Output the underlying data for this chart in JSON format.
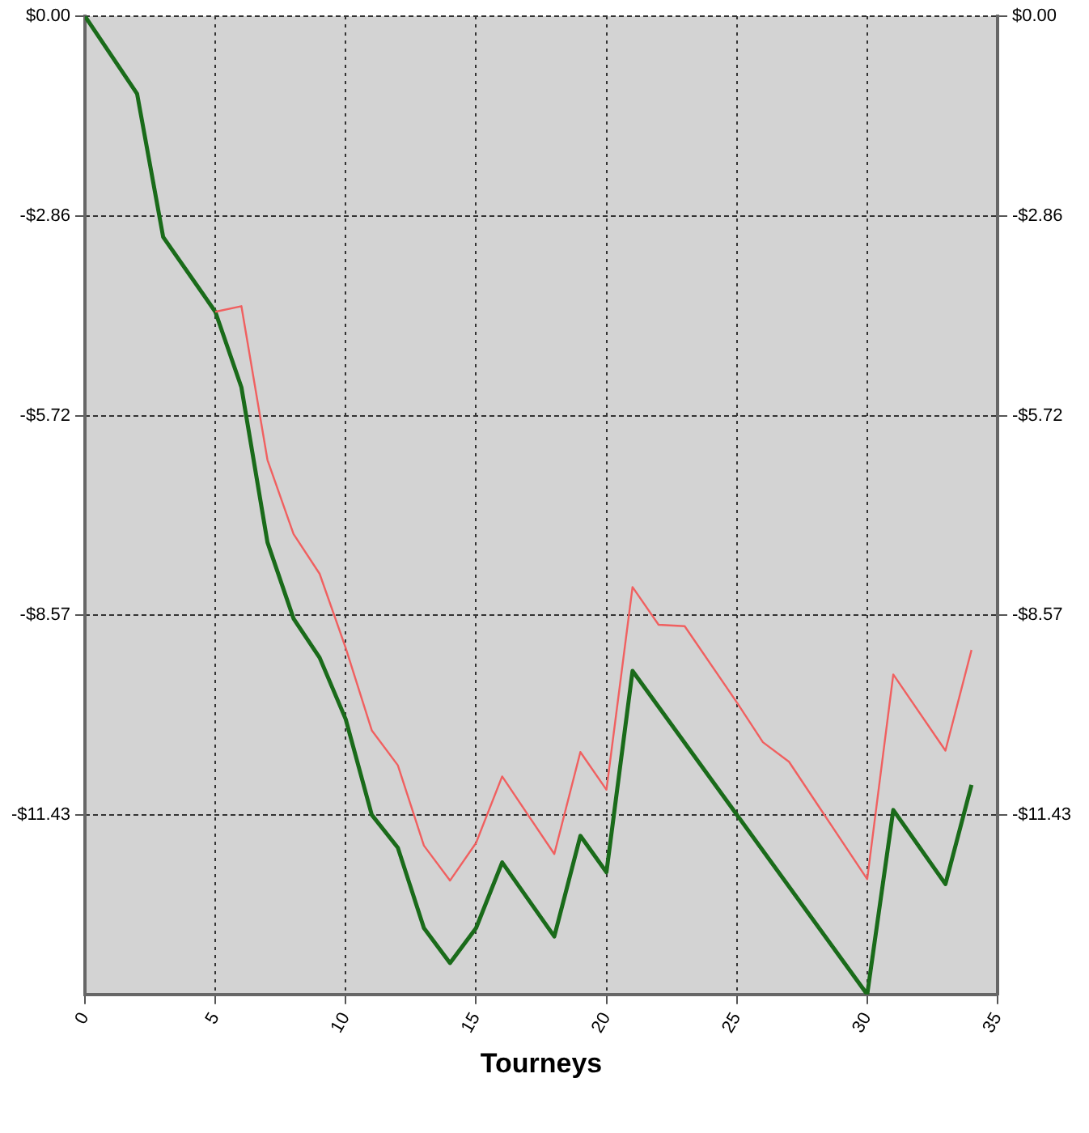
{
  "chart_data": {
    "type": "line",
    "xlabel": "Tourneys",
    "xlim": [
      0,
      35
    ],
    "xticks": [
      0,
      5,
      10,
      15,
      20,
      25,
      30,
      35
    ],
    "ylim": [
      -14,
      0
    ],
    "yticks": [
      {
        "value": 0,
        "label": "$0.00"
      },
      {
        "value": -2.86,
        "label": "-$2.86"
      },
      {
        "value": -5.72,
        "label": "-$5.72"
      },
      {
        "value": -8.57,
        "label": "-$8.57"
      },
      {
        "value": -11.43,
        "label": "-$11.43"
      }
    ],
    "y2lim": [
      -14,
      0
    ],
    "y2ticks": [
      {
        "value": 0,
        "label": "$0.00"
      },
      {
        "value": -2.86,
        "label": "-$2.86"
      },
      {
        "value": -5.72,
        "label": "-$5.72"
      },
      {
        "value": -8.57,
        "label": "-$8.57"
      },
      {
        "value": -11.43,
        "label": "-$11.43"
      }
    ],
    "grid": true,
    "legend": false,
    "marker": "none",
    "line_style": "solid",
    "series": [
      {
        "color": "#f06060",
        "x": [
          5,
          6,
          7,
          8,
          9,
          10,
          11,
          12,
          13,
          14,
          15,
          16,
          18,
          19,
          20,
          21,
          22,
          23,
          25,
          26,
          27,
          30,
          31,
          33,
          34
        ],
        "values": [
          -4.23,
          -4.15,
          -6.35,
          -7.41,
          -7.98,
          -9.04,
          -10.22,
          -10.72,
          -11.87,
          -12.37,
          -11.83,
          -10.88,
          -11.99,
          -10.53,
          -11.07,
          -8.17,
          -8.71,
          -8.73,
          -9.82,
          -10.39,
          -10.67,
          -12.35,
          -9.42,
          -10.51,
          -9.07
        ]
      },
      {
        "color": "#1a6b1a",
        "x": [
          0,
          2,
          3,
          5,
          6,
          7,
          8,
          9,
          10,
          11,
          12,
          13,
          14,
          15,
          16,
          18,
          19,
          20,
          21,
          30,
          31,
          33,
          34
        ],
        "values": [
          0,
          -1.11,
          -3.16,
          -4.23,
          -5.31,
          -7.53,
          -8.62,
          -9.18,
          -10.06,
          -11.43,
          -11.9,
          -13.05,
          -13.55,
          -13.05,
          -12.11,
          -13.17,
          -11.73,
          -12.25,
          -9.37,
          -14,
          -11.36,
          -12.42,
          -11.0
        ]
      }
    ]
  }
}
